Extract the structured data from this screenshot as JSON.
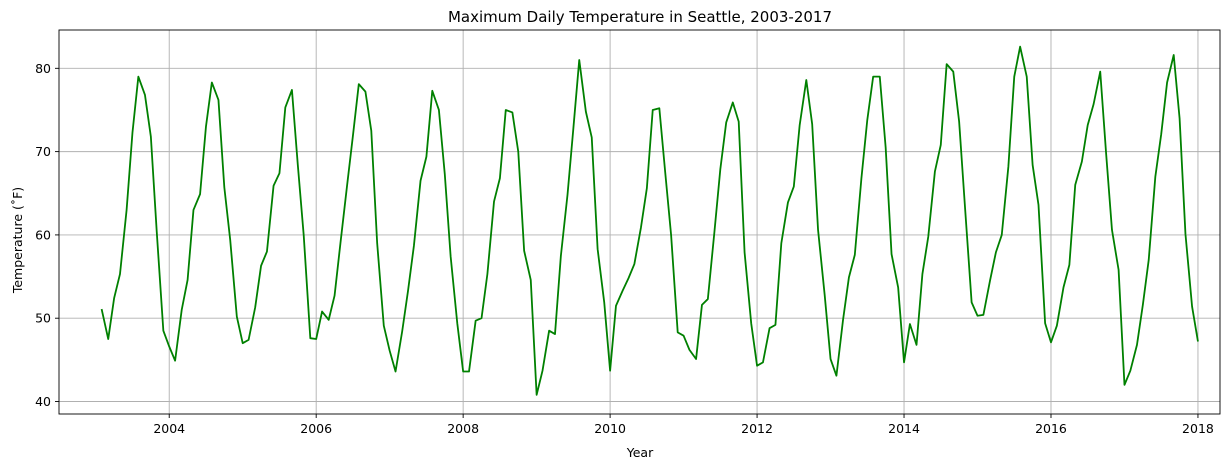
{
  "chart_data": {
    "type": "line",
    "title": "Maximum Daily Temperature in Seattle, 2003-2017",
    "xlabel": "Year",
    "ylabel": "Temperature (˚F)",
    "xlim": [
      2002.5,
      2018.3
    ],
    "ylim": [
      38.5,
      84.6
    ],
    "xticks": [
      2004,
      2006,
      2008,
      2010,
      2012,
      2014,
      2016,
      2018
    ],
    "xtick_labels": [
      "2004",
      "2006",
      "2008",
      "2010",
      "2012",
      "2014",
      "2016",
      "2018"
    ],
    "yticks": [
      40,
      50,
      60,
      70,
      80
    ],
    "ytick_labels": [
      "40",
      "50",
      "60",
      "70",
      "80"
    ],
    "grid": true,
    "series": [
      {
        "color": "#008000",
        "x": [
          2003.08,
          2003.17,
          2003.25,
          2003.33,
          2003.42,
          2003.5,
          2003.58,
          2003.67,
          2003.75,
          2003.83,
          2003.92,
          2004.0,
          2004.08,
          2004.17,
          2004.25,
          2004.33,
          2004.42,
          2004.5,
          2004.58,
          2004.67,
          2004.75,
          2004.83,
          2004.92,
          2005.0,
          2005.08,
          2005.17,
          2005.25,
          2005.33,
          2005.42,
          2005.5,
          2005.58,
          2005.67,
          2005.75,
          2005.83,
          2005.92,
          2006.0,
          2006.08,
          2006.17,
          2006.25,
          2006.33,
          2006.42,
          2006.5,
          2006.58,
          2006.67,
          2006.75,
          2006.83,
          2006.92,
          2007.0,
          2007.08,
          2007.17,
          2007.25,
          2007.33,
          2007.42,
          2007.5,
          2007.58,
          2007.67,
          2007.75,
          2007.83,
          2007.92,
          2008.0,
          2008.08,
          2008.17,
          2008.25,
          2008.33,
          2008.42,
          2008.5,
          2008.58,
          2008.67,
          2008.75,
          2008.83,
          2008.92,
          2009.0,
          2009.08,
          2009.17,
          2009.25,
          2009.33,
          2009.42,
          2009.5,
          2009.58,
          2009.67,
          2009.75,
          2009.83,
          2009.92,
          2010.0,
          2010.08,
          2010.17,
          2010.25,
          2010.33,
          2010.42,
          2010.5,
          2010.58,
          2010.67,
          2010.75,
          2010.83,
          2010.92,
          2011.0,
          2011.08,
          2011.17,
          2011.25,
          2011.33,
          2011.42,
          2011.5,
          2011.58,
          2011.67,
          2011.75,
          2011.83,
          2011.92,
          2012.0,
          2012.08,
          2012.17,
          2012.25,
          2012.33,
          2012.42,
          2012.5,
          2012.58,
          2012.67,
          2012.75,
          2012.83,
          2012.92,
          2013.0,
          2013.08,
          2013.17,
          2013.25,
          2013.33,
          2013.42,
          2013.5,
          2013.58,
          2013.67,
          2013.75,
          2013.83,
          2013.92,
          2014.0,
          2014.08,
          2014.17,
          2014.25,
          2014.33,
          2014.42,
          2014.5,
          2014.58,
          2014.67,
          2014.75,
          2014.83,
          2014.92,
          2015.0,
          2015.08,
          2015.17,
          2015.25,
          2015.33,
          2015.42,
          2015.5,
          2015.58,
          2015.67,
          2015.75,
          2015.83,
          2015.92,
          2016.0,
          2016.08,
          2016.17,
          2016.25,
          2016.33,
          2016.42,
          2016.5,
          2016.58,
          2016.67,
          2016.75,
          2016.83,
          2016.92,
          2017.0,
          2017.08,
          2017.17,
          2017.25,
          2017.33,
          2017.42,
          2017.5,
          2017.58,
          2017.67,
          2017.75,
          2017.83,
          2017.92,
          2018.0
        ],
        "y": [
          51.1,
          47.5,
          52.4,
          55.3,
          63.0,
          72.3,
          79.0,
          76.8,
          71.8,
          60.4,
          48.5,
          46.6,
          44.9,
          51.0,
          54.6,
          63.0,
          64.9,
          73.0,
          78.3,
          76.2,
          65.7,
          59.4,
          50.2,
          47.0,
          47.4,
          51.3,
          56.3,
          58.0,
          65.9,
          67.4,
          75.3,
          77.4,
          68.4,
          60.0,
          47.6,
          47.5,
          50.8,
          49.8,
          52.7,
          59.0,
          65.9,
          71.9,
          78.1,
          77.2,
          72.5,
          59.0,
          49.1,
          46.1,
          43.6,
          48.4,
          53.3,
          58.7,
          66.5,
          69.4,
          77.3,
          75.0,
          67.3,
          57.4,
          49.4,
          43.6,
          43.6,
          49.7,
          50.0,
          55.3,
          64.0,
          66.8,
          75.0,
          74.7,
          70.0,
          58.1,
          54.6,
          40.8,
          43.7,
          48.5,
          48.1,
          57.5,
          64.8,
          72.8,
          81.0,
          74.8,
          71.7,
          58.3,
          51.9,
          43.7,
          51.5,
          53.3,
          54.8,
          56.5,
          60.9,
          65.6,
          75.0,
          75.2,
          67.5,
          60.0,
          48.3,
          47.9,
          46.2,
          45.1,
          51.6,
          52.3,
          60.4,
          67.9,
          73.5,
          75.9,
          73.6,
          57.9,
          49.4,
          44.3,
          44.7,
          48.8,
          49.2,
          59.0,
          63.9,
          65.8,
          73.2,
          78.6,
          73.3,
          60.6,
          52.8,
          45.1,
          43.1,
          49.8,
          54.9,
          57.6,
          66.8,
          73.8,
          79.0,
          79.0,
          70.5,
          57.7,
          53.7,
          44.7,
          49.3,
          46.8,
          55.3,
          59.8,
          67.6,
          70.8,
          80.5,
          79.6,
          73.6,
          63.3,
          51.9,
          50.3,
          50.4,
          54.5,
          57.9,
          60.0,
          68.2,
          79.0,
          82.6,
          79.0,
          68.4,
          63.6,
          49.4,
          47.1,
          49.1,
          53.7,
          56.4,
          66.0,
          68.8,
          73.2,
          75.7,
          79.6,
          69.8,
          60.6,
          55.8,
          42.0,
          43.7,
          46.8,
          51.6,
          57.0,
          67.0,
          72.1,
          78.3,
          81.6,
          74.0,
          60.1,
          51.4,
          47.2
        ]
      }
    ]
  }
}
